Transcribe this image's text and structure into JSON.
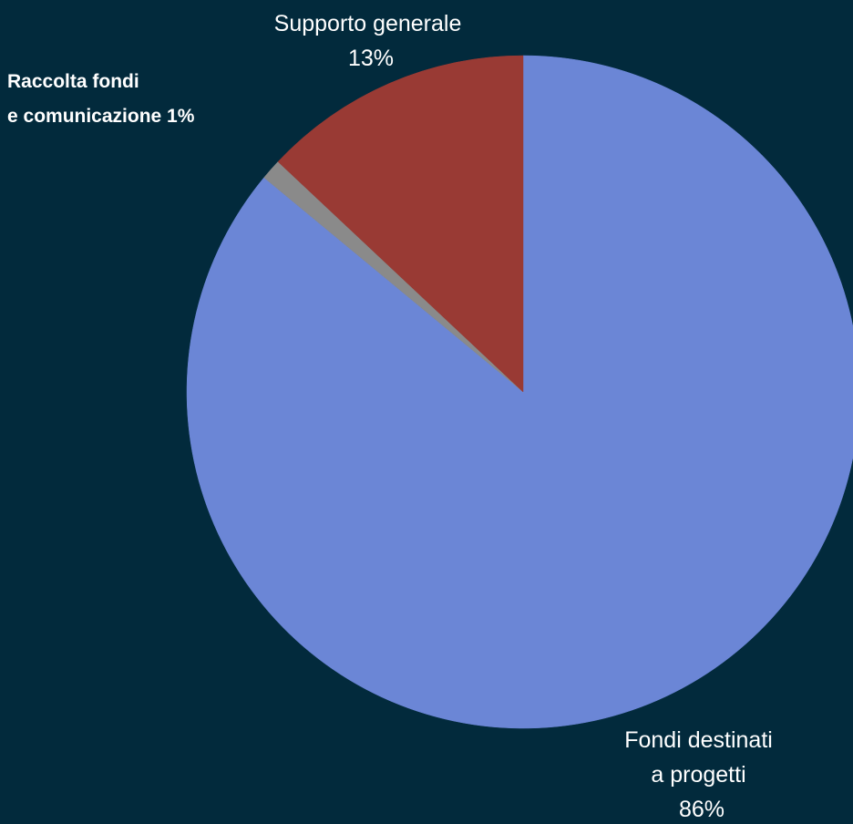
{
  "chart_data": {
    "type": "pie",
    "title": "",
    "start_angle_deg": 0,
    "direction": "clockwise",
    "colors": {
      "background": "#022a3c",
      "label_text": "#ffffff"
    },
    "slices": [
      {
        "label_lines": [
          "Fondi destinati",
          "a progetti"
        ],
        "value": 86,
        "value_label": "86%",
        "color": "#6b86d6"
      },
      {
        "label_lines": [
          "Raccolta fondi",
          "e comunicazione 1%"
        ],
        "value": 1,
        "value_label": "",
        "color": "#8a8a8a"
      },
      {
        "label_lines": [
          "Supporto generale"
        ],
        "value": 13,
        "value_label": "13%",
        "color": "#993a34"
      }
    ]
  }
}
